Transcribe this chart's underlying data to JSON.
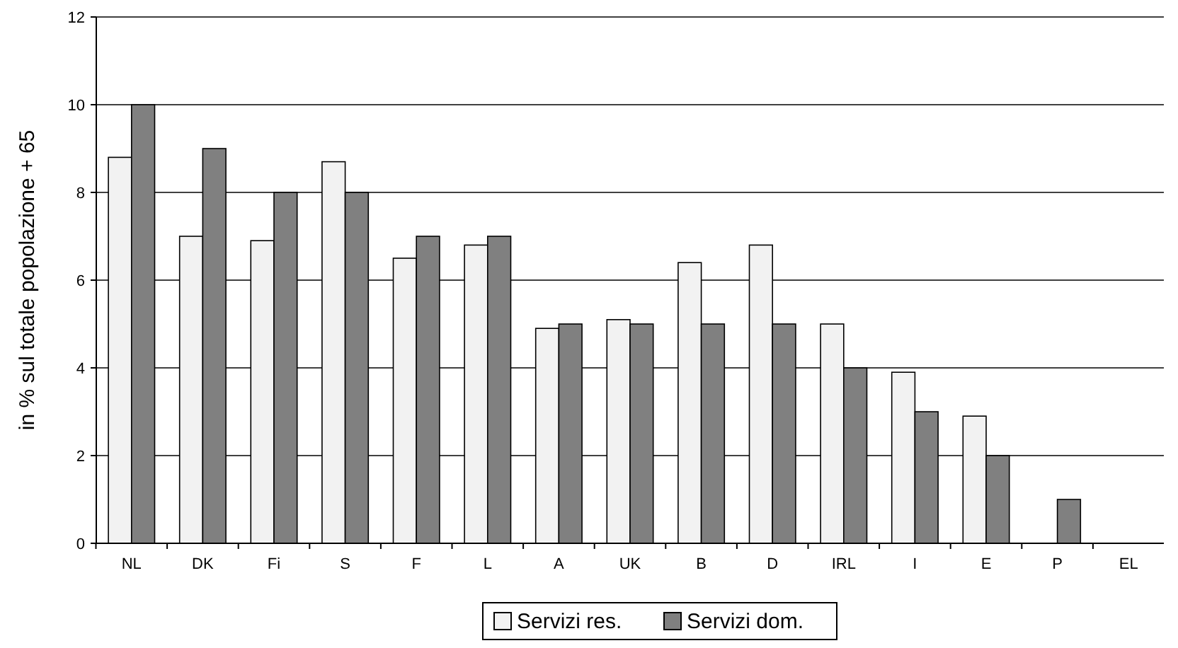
{
  "chart_data": {
    "type": "bar",
    "ylabel": "in % sul totale popolazione + 65",
    "categories": [
      "NL",
      "DK",
      "Fi",
      "S",
      "F",
      "L",
      "A",
      "UK",
      "B",
      "D",
      "IRL",
      "I",
      "E",
      "P",
      "EL"
    ],
    "series": [
      {
        "name": "Servizi res.",
        "color": "#f2f2f2",
        "values": [
          8.8,
          7,
          6.9,
          8.7,
          6.5,
          6.8,
          4.9,
          5.1,
          6.4,
          6.8,
          5,
          3.9,
          2.9,
          null,
          null
        ]
      },
      {
        "name": "Servizi dom.",
        "color": "#808080",
        "values": [
          10,
          9,
          8,
          8,
          7,
          7,
          5,
          5,
          5,
          5,
          4,
          3,
          2,
          1,
          null
        ]
      }
    ],
    "ylim": [
      0,
      12
    ],
    "yticks": [
      0,
      2,
      4,
      6,
      8,
      10,
      12
    ],
    "grid": "y",
    "legend": "bottom"
  }
}
